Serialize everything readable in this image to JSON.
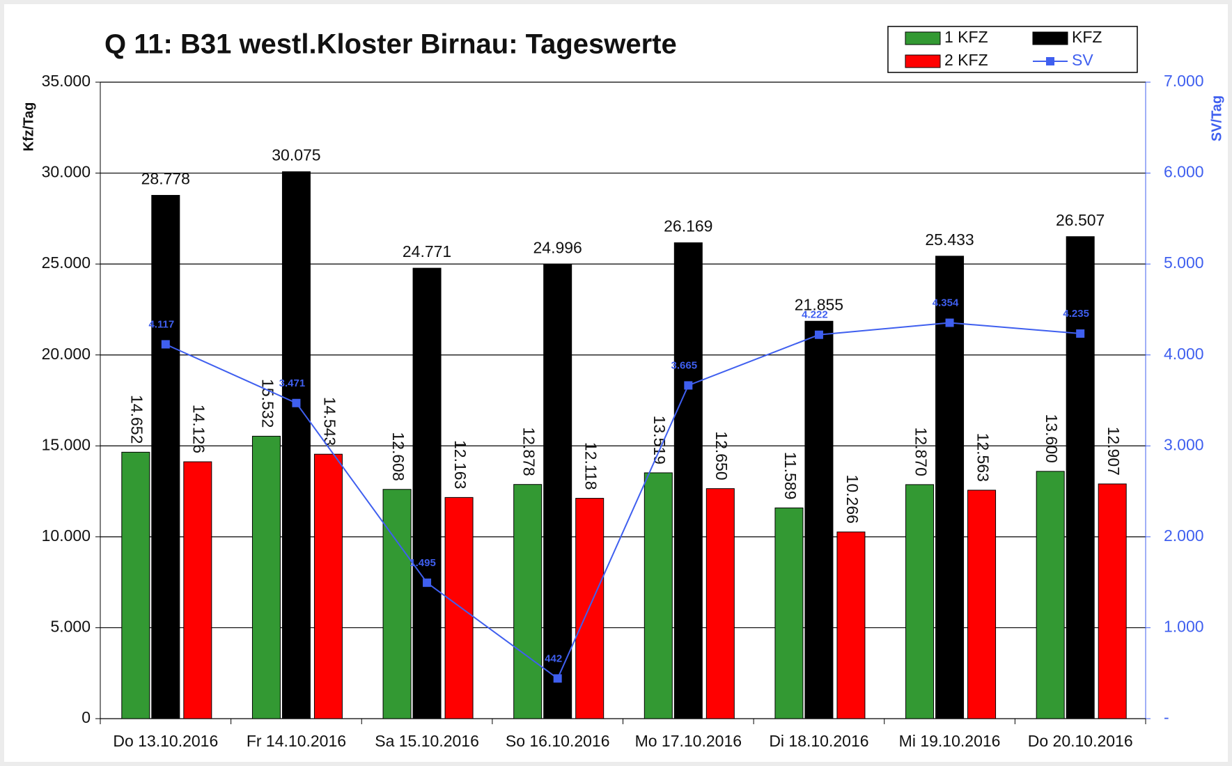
{
  "chart_data": {
    "type": "bar",
    "title": "Q 11: B31 westl.Kloster Birnau: Tageswerte",
    "ylabel": "Kfz/Tag",
    "y2label": "SV/Tag",
    "categories": [
      "Do 13.10.2016",
      "Fr 14.10.2016",
      "Sa 15.10.2016",
      "So 16.10.2016",
      "Mo 17.10.2016",
      "Di 18.10.2016",
      "Mi 19.10.2016",
      "Do 20.10.2016"
    ],
    "series": [
      {
        "name": "1 KFZ",
        "type": "bar",
        "color": "#339933",
        "values": [
          14652,
          15532,
          12608,
          12878,
          13519,
          11589,
          12870,
          13600
        ],
        "value_labels": [
          "14.652",
          "15.532",
          "12.608",
          "12.878",
          "13.519",
          "11.589",
          "12.870",
          "13.600"
        ]
      },
      {
        "name": "KFZ",
        "type": "bar",
        "color": "#000000",
        "values": [
          28778,
          30075,
          24771,
          24996,
          26169,
          21855,
          25433,
          26507
        ],
        "value_labels": [
          "28.778",
          "30.075",
          "24.771",
          "24.996",
          "26.169",
          "21.855",
          "25.433",
          "26.507"
        ]
      },
      {
        "name": "2 KFZ",
        "type": "bar",
        "color": "#ff0000",
        "values": [
          14126,
          14543,
          12163,
          12118,
          12650,
          10266,
          12563,
          12907
        ],
        "value_labels": [
          "14.126",
          "14.543",
          "12.163",
          "12.118",
          "12.650",
          "10.266",
          "12.563",
          "12.907"
        ]
      },
      {
        "name": "SV",
        "type": "line",
        "axis": "y2",
        "color": "#3f5fef",
        "values": [
          4117,
          3471,
          1495,
          442,
          3665,
          4222,
          4354,
          4235
        ],
        "value_labels": [
          "4.117",
          "3.471",
          "1.495",
          "442",
          "3.665",
          "4.222",
          "4.354",
          "4.235"
        ]
      }
    ],
    "ylim": [
      0,
      35000
    ],
    "yticks": [
      0,
      {
        "value": 5000,
        "label": "5.000"
      },
      {
        "value": 10000,
        "label": "10.000"
      },
      {
        "value": 15000,
        "label": "15.000"
      },
      {
        "value": 20000,
        "label": "20.000"
      },
      {
        "value": 25000,
        "label": "25.000"
      },
      {
        "value": 30000,
        "label": "30.000"
      },
      {
        "value": 35000,
        "label": "35.000"
      }
    ],
    "y2lim": [
      0,
      7000
    ],
    "y2ticks": [
      {
        "value": 0,
        "label": "-"
      },
      {
        "value": 1000,
        "label": "1.000"
      },
      {
        "value": 2000,
        "label": "2.000"
      },
      {
        "value": 3000,
        "label": "3.000"
      },
      {
        "value": 4000,
        "label": "4.000"
      },
      {
        "value": 5000,
        "label": "5.000"
      },
      {
        "value": 6000,
        "label": "6.000"
      },
      {
        "value": 7000,
        "label": "7.000"
      }
    ],
    "grid": true,
    "legend": "top-right"
  }
}
